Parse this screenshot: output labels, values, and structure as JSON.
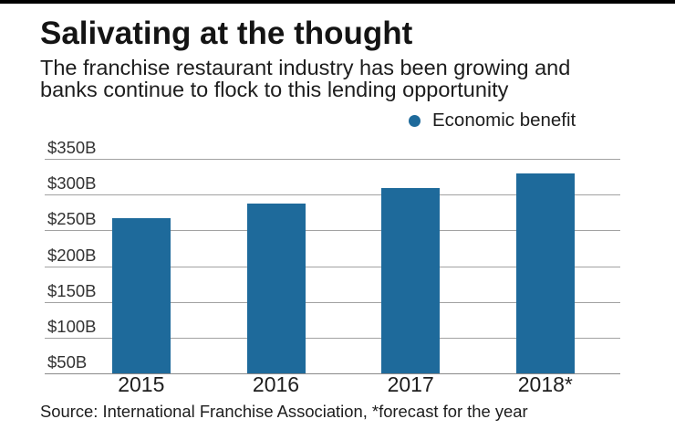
{
  "header": {
    "title": "Salivating at the thought",
    "subtitle_line1": "The franchise restaurant industry has been growing and",
    "subtitle_line2": "banks continue to flock to this lending opportunity"
  },
  "legend": {
    "label": "Economic benefit"
  },
  "colors": {
    "bar": "#1e6a9b",
    "accent": "#1e6a9b"
  },
  "chart_data": {
    "type": "bar",
    "title": "Salivating at the thought",
    "categories": [
      "2015",
      "2016",
      "2017",
      "2018*"
    ],
    "series": [
      {
        "name": "Economic benefit",
        "values": [
          267,
          287,
          309,
          330
        ]
      }
    ],
    "ylabel": "",
    "xlabel": "",
    "ylim": [
      50,
      350
    ],
    "yticks": [
      "$350B",
      "$300B",
      "$250B",
      "$200B",
      "$150B",
      "$100B",
      "$50B"
    ],
    "grid": "horizontal",
    "legend_position": "top-right",
    "units": "billions USD"
  },
  "footer": {
    "source": "Source: International Franchise Association, *forecast for the year"
  }
}
